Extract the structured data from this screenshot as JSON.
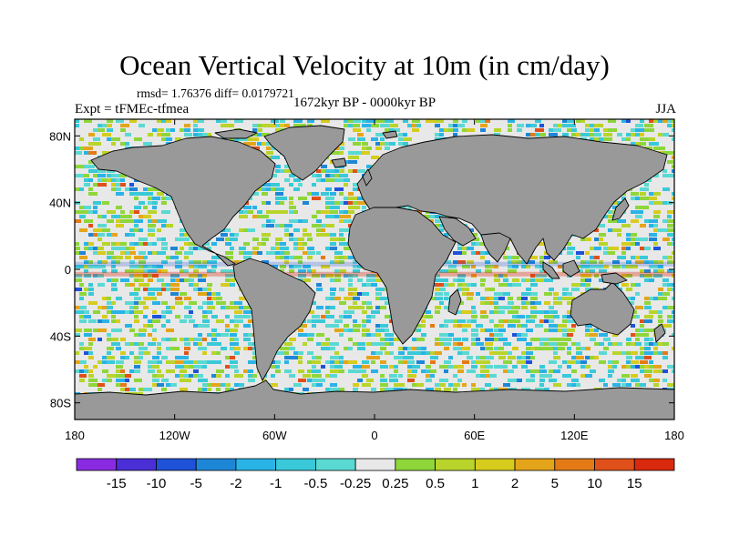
{
  "figure": {
    "title": "Ocean Vertical Velocity at 10m (in cm/day)",
    "stats": "rmsd= 1.76376 diff= 0.0179721",
    "period": "1672kyr BP - 0000kyr BP",
    "experiment": "Expt = tFMEc-tfmea",
    "season": "JJA"
  },
  "map": {
    "projection": "cylindrical-equidistant",
    "lon_range": [
      -180,
      180
    ],
    "lat_range": [
      -90,
      90
    ],
    "land_color": "#999999",
    "ocean_base_color": "#e8e8e8",
    "lat_ticks": [
      {
        "value": 80,
        "label": "80N"
      },
      {
        "value": 40,
        "label": "40N"
      },
      {
        "value": 0,
        "label": "0"
      },
      {
        "value": -40,
        "label": "40S"
      },
      {
        "value": -80,
        "label": "80S"
      }
    ],
    "lon_ticks": [
      {
        "value": -180,
        "label": "180"
      },
      {
        "value": -120,
        "label": "120W"
      },
      {
        "value": -60,
        "label": "60W"
      },
      {
        "value": 0,
        "label": "0"
      },
      {
        "value": 60,
        "label": "60E"
      },
      {
        "value": 120,
        "label": "120E"
      },
      {
        "value": 180,
        "label": "180"
      }
    ]
  },
  "colorbar": {
    "colors": [
      "#8a2be2",
      "#4b2fd6",
      "#1f52d8",
      "#1e86d6",
      "#2ab3e6",
      "#39c9d8",
      "#5ad9d3",
      "#e8e8e8",
      "#8ed63a",
      "#b9d42a",
      "#d7cc1e",
      "#e4a51a",
      "#e37a16",
      "#e0501a",
      "#d9290f"
    ],
    "labels": [
      "-15",
      "-10",
      "-5",
      "-2",
      "-1",
      "-0.5",
      "-0.25",
      "0.25",
      "0.5",
      "1",
      "2",
      "5",
      "10",
      "15"
    ]
  }
}
